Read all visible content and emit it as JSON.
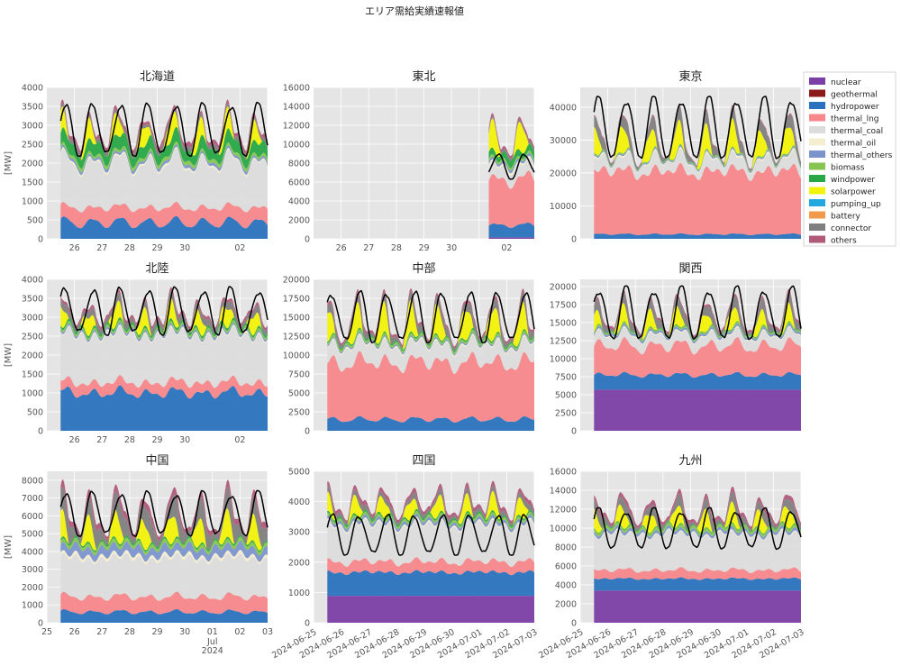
{
  "figure_title": "エリア需給実績速報値",
  "colors": {
    "nuclear": "#7b3fa6",
    "geothermal": "#8b1a1a",
    "hydropower": "#2a72bd",
    "thermal_lng": "#f7878a",
    "thermal_coal": "#dcdcdc",
    "thermal_oil": "#f5edd0",
    "thermal_others": "#7b95cc",
    "biomass": "#87c552",
    "windpower": "#27a844",
    "solarpower": "#f2f20a",
    "pumping_up": "#22a8e0",
    "battery": "#f29a4c",
    "connector": "#7f7f7f",
    "others": "#b05a7a",
    "demand": "#000000",
    "panel_bg": "#e5e5e5"
  },
  "legend": [
    "nuclear",
    "geothermal",
    "hydropower",
    "thermal_lng",
    "thermal_coal",
    "thermal_oil",
    "thermal_others",
    "biomass",
    "windpower",
    "solarpower",
    "pumping_up",
    "battery",
    "connector",
    "others"
  ],
  "chart_data": [
    {
      "type": "area",
      "title": "北海道",
      "ylabel": "[MW]",
      "ylim": [
        0,
        4000
      ],
      "yticks": [
        "0",
        "500",
        "1000",
        "1500",
        "2000",
        "2500",
        "3000",
        "3500",
        "4000"
      ],
      "xticks": [
        "26",
        "27",
        "28",
        "29",
        "30",
        "",
        "02",
        ""
      ],
      "daily_start": 0.0,
      "daily_end": 7.0,
      "base": {
        "nuclear": 0,
        "hydropower": [
          300,
          550
        ],
        "thermal_lng": [
          450,
          350
        ],
        "thermal_coal": [
          1000,
          1300
        ],
        "thermal_oil": [
          60,
          40
        ],
        "thermal_others": [
          80,
          60
        ],
        "biomass": [
          100,
          70
        ],
        "windpower": [
          250,
          350
        ],
        "solarpower": [
          0,
          550
        ],
        "connector": [
          120,
          80
        ],
        "others": [
          120,
          80
        ]
      },
      "demand": [
        2250,
        3500
      ]
    },
    {
      "type": "area",
      "title": "東北",
      "ylabel": "",
      "ylim": [
        0,
        16000
      ],
      "yticks": [
        "0",
        "2000",
        "4000",
        "6000",
        "8000",
        "10000",
        "12000",
        "14000",
        "16000"
      ],
      "xticks": [
        "26",
        "27",
        "28",
        "29",
        "30",
        "",
        "02",
        ""
      ],
      "daily_start": 5.85,
      "daily_end": 7.0,
      "base": {
        "nuclear": 150,
        "hydropower": [
          1100,
          1500
        ],
        "thermal_lng": [
          4500,
          5200
        ],
        "thermal_coal": [
          1500,
          1200
        ],
        "thermal_oil": [
          300,
          200
        ],
        "thermal_others": [
          300,
          250
        ],
        "biomass": [
          300,
          250
        ],
        "windpower": [
          800,
          600
        ],
        "solarpower": [
          0,
          3000
        ],
        "connector": [
          300,
          200
        ],
        "others": [
          300,
          300
        ]
      },
      "demand": [
        6500,
        8800
      ]
    },
    {
      "type": "area",
      "title": "東京",
      "ylabel": "",
      "ylim": [
        0,
        46000
      ],
      "yticks": [
        "0",
        "10000",
        "20000",
        "30000",
        "40000"
      ],
      "xticks": [
        "",
        "",
        "",
        "",
        "",
        "",
        "",
        ""
      ],
      "daily_start": 0.0,
      "daily_end": 7.0,
      "base": {
        "nuclear": 0,
        "hydropower": [
          1200,
          1600
        ],
        "thermal_lng": [
          18000,
          20000
        ],
        "thermal_coal": [
          2500,
          4000
        ],
        "thermal_oil": [
          200,
          600
        ],
        "thermal_others": [
          300,
          400
        ],
        "biomass": [
          300,
          300
        ],
        "windpower": [
          100,
          100
        ],
        "solarpower": [
          0,
          8000
        ],
        "connector": [
          500,
          4000
        ],
        "others": [
          200,
          400
        ]
      },
      "demand": [
        25000,
        42000
      ]
    },
    {
      "type": "area",
      "title": "北陸",
      "ylabel": "[MW]",
      "ylim": [
        0,
        4000
      ],
      "yticks": [
        "0",
        "500",
        "1000",
        "1500",
        "2000",
        "2500",
        "3000",
        "3500",
        "4000"
      ],
      "xticks": [
        "26",
        "27",
        "28",
        "29",
        "30",
        "",
        "02",
        ""
      ],
      "daily_start": 0.0,
      "daily_end": 7.0,
      "base": {
        "nuclear": 0,
        "hydropower": [
          900,
          1100
        ],
        "thermal_lng": [
          300,
          250
        ],
        "thermal_coal": [
          1300,
          1200
        ],
        "thermal_oil": [
          40,
          30
        ],
        "thermal_others": [
          60,
          50
        ],
        "biomass": [
          60,
          60
        ],
        "windpower": [
          60,
          60
        ],
        "solarpower": [
          0,
          500
        ],
        "connector": [
          100,
          200
        ],
        "others": [
          80,
          80
        ]
      },
      "demand": [
        2600,
        3700
      ]
    },
    {
      "type": "area",
      "title": "中部",
      "ylabel": "",
      "ylim": [
        0,
        20000
      ],
      "yticks": [
        "0",
        "2500",
        "5000",
        "7500",
        "10000",
        "12500",
        "15000",
        "17500",
        "20000"
      ],
      "xticks": [
        "",
        "",
        "",
        "",
        "",
        "",
        "",
        ""
      ],
      "daily_start": 0.0,
      "daily_end": 7.0,
      "base": {
        "nuclear": 0,
        "hydropower": [
          1200,
          1800
        ],
        "thermal_lng": [
          7000,
          8000
        ],
        "thermal_coal": [
          2500,
          2000
        ],
        "thermal_oil": [
          200,
          200
        ],
        "thermal_others": [
          200,
          200
        ],
        "biomass": [
          300,
          300
        ],
        "windpower": [
          200,
          200
        ],
        "solarpower": [
          0,
          4000
        ],
        "connector": [
          300,
          1200
        ],
        "others": [
          300,
          400
        ]
      },
      "demand": [
        12000,
        18000
      ]
    },
    {
      "type": "area",
      "title": "関西",
      "ylabel": "",
      "ylim": [
        0,
        21000
      ],
      "yticks": [
        "0",
        "2500",
        "5000",
        "7500",
        "10000",
        "12500",
        "15000",
        "17500",
        "20000"
      ],
      "xticks": [
        "",
        "",
        "",
        "",
        "",
        "",
        "",
        ""
      ],
      "daily_start": 0.0,
      "daily_end": 7.0,
      "base": {
        "nuclear": 5700,
        "hydropower": [
          1800,
          2300
        ],
        "thermal_lng": [
          3500,
          4500
        ],
        "thermal_coal": [
          1500,
          1300
        ],
        "thermal_oil": [
          150,
          150
        ],
        "thermal_others": [
          300,
          300
        ],
        "biomass": [
          200,
          200
        ],
        "windpower": [
          100,
          100
        ],
        "solarpower": [
          0,
          2500
        ],
        "connector": [
          300,
          1500
        ],
        "others": [
          300,
          300
        ]
      },
      "demand": [
        13000,
        19500
      ]
    },
    {
      "type": "area",
      "title": "中国",
      "ylabel": "[MW]",
      "ylim": [
        0,
        8500
      ],
      "yticks": [
        "0",
        "1000",
        "2000",
        "3000",
        "4000",
        "5000",
        "6000",
        "7000",
        "8000"
      ],
      "xticks": [
        "25",
        "26",
        "27",
        "28",
        "29",
        "30",
        "01",
        "02",
        "03"
      ],
      "xnote": "Jul 2024",
      "daily_start": 0.0,
      "daily_end": 7.0,
      "base": {
        "nuclear": 0,
        "hydropower": [
          500,
          700
        ],
        "thermal_lng": [
          800,
          900
        ],
        "thermal_coal": [
          2300,
          2000
        ],
        "thermal_oil": [
          200,
          150
        ],
        "thermal_others": [
          500,
          400
        ],
        "biomass": [
          200,
          200
        ],
        "windpower": [
          100,
          100
        ],
        "solarpower": [
          0,
          1500
        ],
        "connector": [
          300,
          1200
        ],
        "others": [
          200,
          400
        ]
      },
      "demand": [
        5000,
        7200
      ]
    },
    {
      "type": "area",
      "title": "四国",
      "ylabel": "",
      "ylim": [
        0,
        5000
      ],
      "yticks": [
        "0",
        "1000",
        "2000",
        "3000",
        "4000",
        "5000"
      ],
      "xticks": [
        "2024-06-25",
        "2024-06-26",
        "2024-06-27",
        "2024-06-28",
        "2024-06-29",
        "2024-06-30",
        "2024-07-01",
        "2024-07-02",
        "2024-07-03"
      ],
      "daily_start": 0.0,
      "daily_end": 7.0,
      "base": {
        "nuclear": 890,
        "hydropower": [
          750,
          800
        ],
        "thermal_lng": [
          300,
          400
        ],
        "thermal_coal": [
          1200,
          1200
        ],
        "thermal_oil": [
          50,
          50
        ],
        "thermal_others": [
          100,
          100
        ],
        "biomass": [
          80,
          80
        ],
        "windpower": [
          60,
          60
        ],
        "solarpower": [
          0,
          600
        ],
        "connector": [
          80,
          200
        ],
        "others": [
          100,
          150
        ]
      },
      "demand": [
        2300,
        3500
      ]
    },
    {
      "type": "area",
      "title": "九州",
      "ylabel": "",
      "ylim": [
        0,
        16000
      ],
      "yticks": [
        "0",
        "2000",
        "4000",
        "6000",
        "8000",
        "10000",
        "12000",
        "14000",
        "16000"
      ],
      "xticks": [
        "2024-06-25",
        "2024-06-26",
        "2024-06-27",
        "2024-06-28",
        "2024-06-29",
        "2024-06-30",
        "2024-07-01",
        "2024-07-02",
        "2024-07-03"
      ],
      "daily_start": 0.0,
      "daily_end": 7.0,
      "base": {
        "nuclear": 3400,
        "hydropower": [
          1200,
          1300
        ],
        "thermal_lng": [
          800,
          1000
        ],
        "thermal_coal": [
          4000,
          3500
        ],
        "thermal_oil": [
          100,
          100
        ],
        "thermal_others": [
          300,
          300
        ],
        "biomass": [
          300,
          300
        ],
        "windpower": [
          100,
          100
        ],
        "solarpower": [
          0,
          2000
        ],
        "connector": [
          200,
          1200
        ],
        "others": [
          300,
          500
        ]
      },
      "demand": [
        8000,
        11800
      ]
    }
  ]
}
